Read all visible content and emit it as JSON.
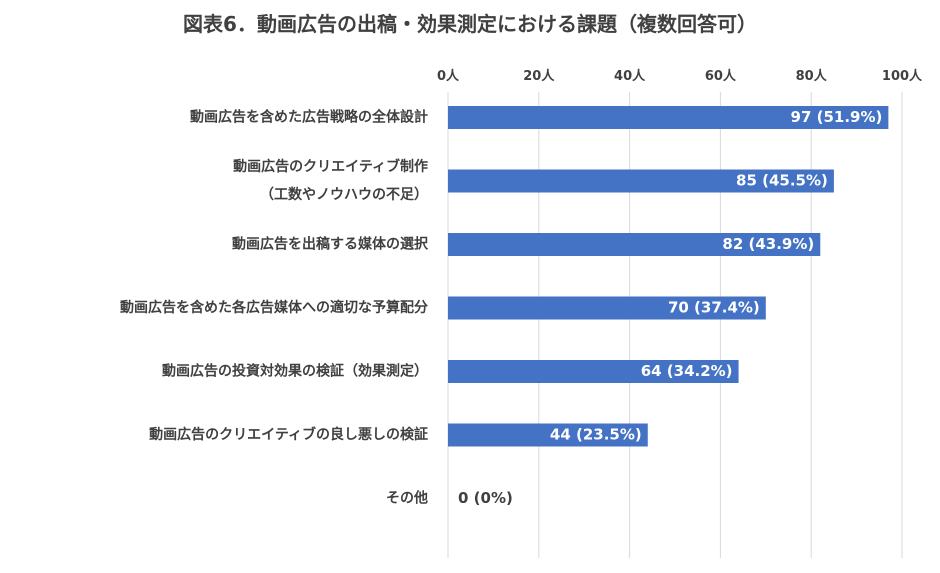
{
  "chart_data": {
    "type": "bar",
    "orientation": "horizontal",
    "title": "図表6．動画広告の出稿・効果測定における課題（複数回答可）",
    "xlabel": "",
    "ylabel": "",
    "x_ticks": [
      "0人",
      "20人",
      "40人",
      "60人",
      "80人",
      "100人"
    ],
    "xlim": [
      0,
      100
    ],
    "x_axis_position": "top",
    "grid": true,
    "legend": "none",
    "bar_color": "#4472c4",
    "categories": [
      [
        "動画広告を含めた広告戦略の全体設計"
      ],
      [
        "動画広告のクリエイティブ制作",
        "（工数やノウハウの不足）"
      ],
      [
        "動画広告を出稿する媒体の選択"
      ],
      [
        "動画広告を含めた各広告媒体への適切な予算配分"
      ],
      [
        "動画広告の投資対効果の検証（効果測定）"
      ],
      [
        "動画広告のクリエイティブの良し悪しの検証"
      ],
      [
        "その他"
      ]
    ],
    "values": [
      97,
      85,
      82,
      70,
      64,
      44,
      0
    ],
    "data_labels": [
      "97 (51.9%)",
      "85 (45.5%)",
      "82 (43.9%)",
      "70 (37.4%)",
      "64 (34.2%)",
      "44 (23.5%)",
      "0 (0%)"
    ]
  }
}
